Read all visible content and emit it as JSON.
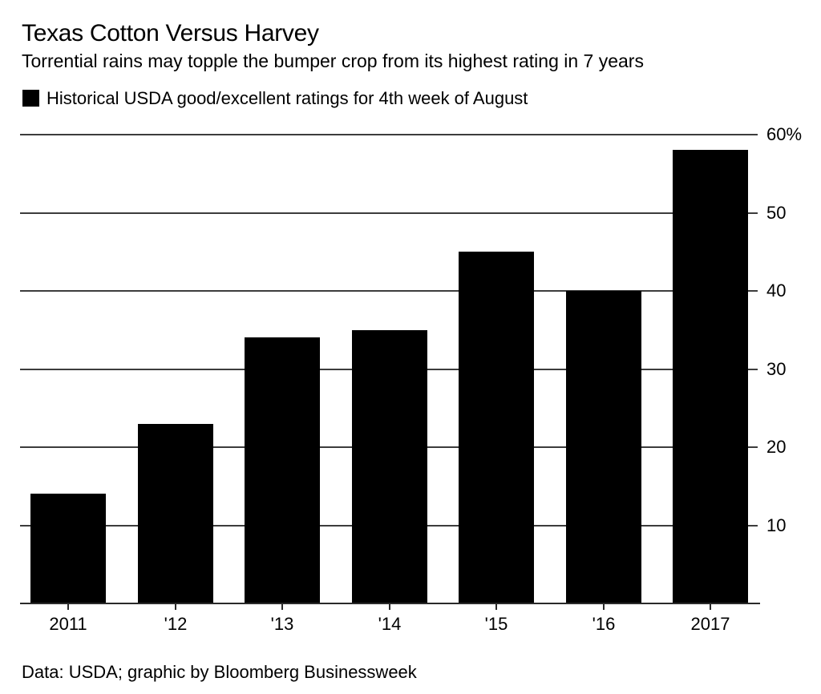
{
  "header": {
    "title": "Texas Cotton Versus Harvey",
    "subtitle": "Torrential rains may topple the bumper crop from its highest rating in 7 years"
  },
  "legend": {
    "swatch_color": "#000000",
    "label": "Historical USDA good/excellent ratings for 4th week of August"
  },
  "chart_data": {
    "type": "bar",
    "title": "Texas Cotton Versus Harvey",
    "subtitle": "Torrential rains may topple the bumper crop from its highest rating in 7 years",
    "series_name": "Historical USDA good/excellent ratings for 4th week of August",
    "categories": [
      "2011",
      "'12",
      "'13",
      "'14",
      "'15",
      "'16",
      "2017"
    ],
    "values": [
      14,
      23,
      34,
      35,
      45,
      40,
      58
    ],
    "bar_color": "#000000",
    "xlabel": "",
    "ylabel": "",
    "ylim": [
      0,
      60
    ],
    "y_axis_side": "right",
    "grid": true,
    "y_ticks": [
      {
        "value": 60,
        "label": "60%"
      },
      {
        "value": 50,
        "label": "50"
      },
      {
        "value": 40,
        "label": "40"
      },
      {
        "value": 30,
        "label": "30"
      },
      {
        "value": 20,
        "label": "20"
      },
      {
        "value": 10,
        "label": "10"
      }
    ]
  },
  "footer": {
    "source": "Data: USDA; graphic by Bloomberg Businessweek"
  }
}
